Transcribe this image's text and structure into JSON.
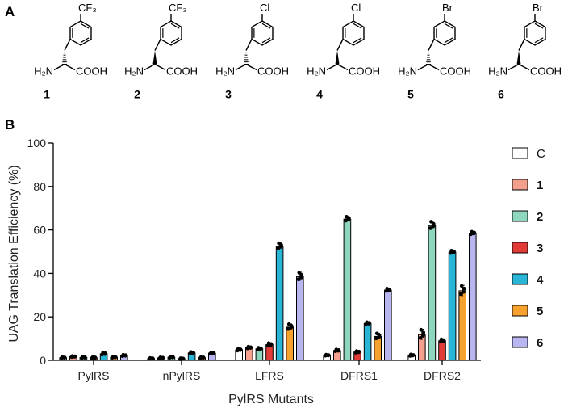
{
  "panel_a_label": "A",
  "panel_b_label": "B",
  "structures": [
    {
      "number": "1",
      "substituent": "CF₃",
      "stereo": "D"
    },
    {
      "number": "2",
      "substituent": "CF₃",
      "stereo": "L"
    },
    {
      "number": "3",
      "substituent": "Cl",
      "stereo": "D"
    },
    {
      "number": "4",
      "substituent": "Cl",
      "stereo": "L"
    },
    {
      "number": "5",
      "substituent": "Br",
      "stereo": "D"
    },
    {
      "number": "6",
      "substituent": "Br",
      "stereo": "L"
    }
  ],
  "amine_label": "H₂N",
  "acid_label": "COOH",
  "colors": {
    "C": "#ffffff",
    "1": "#f4a08f",
    "2": "#8fd6bf",
    "3": "#e23a37",
    "4": "#29b6d6",
    "5": "#f7a12f",
    "6": "#b9b5f1"
  },
  "chart_data": {
    "type": "bar",
    "xlabel": "PylRS Mutants",
    "ylabel": "UAG Translation Efficiency (%)",
    "ylim": [
      0,
      100
    ],
    "yticks": [
      0,
      20,
      40,
      60,
      80,
      100
    ],
    "categories": [
      "PylRS",
      "nPylRS",
      "LFRS",
      "DFRS1",
      "DFRS2"
    ],
    "legend_position": "right",
    "series": [
      {
        "name": "C",
        "values": [
          1.2,
          0.8,
          4.8,
          2.3,
          2.3
        ],
        "errors": [
          0.3,
          0.3,
          0.5,
          0.3,
          0.4
        ]
      },
      {
        "name": "1",
        "values": [
          1.7,
          1.1,
          5.8,
          4.5,
          11.8
        ],
        "errors": [
          0.3,
          0.3,
          0.5,
          0.5,
          2.5
        ]
      },
      {
        "name": "2",
        "values": [
          1.3,
          1.4,
          5.3,
          65.0,
          62.0
        ],
        "errors": [
          0.3,
          0.3,
          0.5,
          1.2,
          2.0
        ]
      },
      {
        "name": "3",
        "values": [
          1.2,
          0.7,
          7.2,
          3.8,
          9.0
        ],
        "errors": [
          0.3,
          0.3,
          0.8,
          0.5,
          0.7
        ]
      },
      {
        "name": "4",
        "values": [
          3.0,
          3.4,
          52.5,
          17.0,
          49.8
        ],
        "errors": [
          0.6,
          0.5,
          1.5,
          0.6,
          0.7
        ]
      },
      {
        "name": "5",
        "values": [
          1.4,
          1.2,
          15.3,
          11.0,
          32.0
        ],
        "errors": [
          0.3,
          0.3,
          1.5,
          1.5,
          2.5
        ]
      },
      {
        "name": "6",
        "values": [
          2.2,
          3.3,
          38.5,
          32.3,
          58.5
        ],
        "errors": [
          0.4,
          0.4,
          2.0,
          0.7,
          0.7
        ]
      }
    ]
  }
}
